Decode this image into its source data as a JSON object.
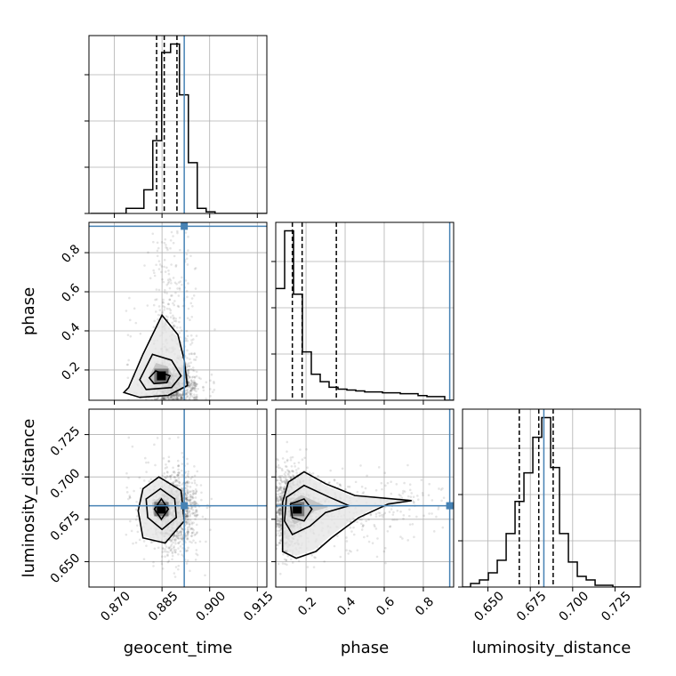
{
  "chart_data": {
    "type": "corner",
    "parameters": [
      "geocent_time",
      "phase",
      "luminosity_distance"
    ],
    "truths": {
      "geocent_time": 0.892,
      "phase": 0.935,
      "luminosity_distance": 0.683
    },
    "panels": {
      "geocent_time": {
        "range": [
          0.862,
          0.918
        ],
        "ticks": [
          "0.870",
          "0.885",
          "0.900",
          "0.915"
        ],
        "tick_values": [
          0.87,
          0.885,
          0.9,
          0.915
        ],
        "quantiles": [
          0.8833,
          0.8857,
          0.8897
        ],
        "hist_edges_start": 0.8625,
        "hist_bin_width": 0.0028,
        "hist_counts": [
          0,
          0,
          0,
          0,
          0.03,
          0.03,
          0.14,
          0.43,
          0.95,
          1.0,
          0.7,
          0.3,
          0.03,
          0.01,
          0,
          0,
          0,
          0,
          0,
          0
        ]
      },
      "phase": {
        "range": [
          0.045,
          0.955
        ],
        "ticks": [
          "0.2",
          "0.4",
          "0.6",
          "0.8"
        ],
        "tick_values": [
          0.2,
          0.4,
          0.6,
          0.8
        ],
        "quantiles": [
          0.13,
          0.18,
          0.355
        ],
        "hist_edges_start": 0.045,
        "hist_bin_width": 0.0455,
        "hist_counts": [
          0.6,
          0.91,
          0.57,
          0.26,
          0.14,
          0.1,
          0.07,
          0.06,
          0.055,
          0.05,
          0.045,
          0.045,
          0.04,
          0.04,
          0.035,
          0.035,
          0.025,
          0.02,
          0.02,
          0.0
        ]
      },
      "luminosity_distance": {
        "range": [
          0.635,
          0.74
        ],
        "ticks": [
          "0.650",
          "0.675",
          "0.700",
          "0.725"
        ],
        "tick_values": [
          0.65,
          0.675,
          0.7,
          0.725
        ],
        "quantiles": [
          0.6685,
          0.68,
          0.6885
        ],
        "hist_edges_start": 0.6345,
        "hist_bin_width": 0.00525,
        "hist_counts": [
          0,
          0.02,
          0.04,
          0.08,
          0.15,
          0.3,
          0.48,
          0.64,
          0.84,
          0.95,
          0.67,
          0.3,
          0.14,
          0.06,
          0.04,
          0.01,
          0.01,
          0,
          0,
          0
        ]
      }
    },
    "pairs": [
      {
        "x": "geocent_time",
        "y": "phase",
        "density_peak": [
          0.8848,
          0.17
        ],
        "contours": [
          [
            [
              0.883,
              0.195
            ],
            [
              0.8875,
              0.17
            ],
            [
              0.8865,
              0.135
            ],
            [
              0.8825,
              0.13
            ],
            [
              0.881,
              0.16
            ]
          ],
          [
            [
              0.882,
              0.28
            ],
            [
              0.888,
              0.25
            ],
            [
              0.891,
              0.17
            ],
            [
              0.888,
              0.11
            ],
            [
              0.88,
              0.1
            ],
            [
              0.878,
              0.15
            ]
          ],
          [
            [
              0.885,
              0.48
            ],
            [
              0.89,
              0.38
            ],
            [
              0.892,
              0.25
            ],
            [
              0.893,
              0.12
            ],
            [
              0.887,
              0.07
            ],
            [
              0.878,
              0.06
            ],
            [
              0.873,
              0.085
            ],
            [
              0.8745,
              0.11
            ],
            [
              0.879,
              0.28
            ],
            [
              0.882,
              0.38
            ]
          ]
        ]
      },
      {
        "x": "geocent_time",
        "y": "luminosity_distance",
        "density_peak": [
          0.8848,
          0.681
        ],
        "contours": [
          [
            [
              0.8848,
              0.687
            ],
            [
              0.887,
              0.681
            ],
            [
              0.8848,
              0.675
            ],
            [
              0.8826,
              0.681
            ]
          ],
          [
            [
              0.8845,
              0.693
            ],
            [
              0.889,
              0.687
            ],
            [
              0.8895,
              0.676
            ],
            [
              0.885,
              0.669
            ],
            [
              0.8805,
              0.676
            ],
            [
              0.88,
              0.687
            ]
          ],
          [
            [
              0.884,
              0.7
            ],
            [
              0.891,
              0.692
            ],
            [
              0.892,
              0.674
            ],
            [
              0.886,
              0.661
            ],
            [
              0.879,
              0.664
            ],
            [
              0.8775,
              0.68
            ],
            [
              0.879,
              0.693
            ]
          ]
        ]
      },
      {
        "x": "phase",
        "y": "luminosity_distance",
        "density_peak": [
          0.155,
          0.681
        ],
        "contours": [
          [
            [
              0.19,
              0.687
            ],
            [
              0.23,
              0.681
            ],
            [
              0.19,
              0.674
            ],
            [
              0.13,
              0.676
            ],
            [
              0.12,
              0.684
            ]
          ],
          [
            [
              0.19,
              0.695
            ],
            [
              0.32,
              0.688
            ],
            [
              0.42,
              0.683
            ],
            [
              0.3,
              0.679
            ],
            [
              0.22,
              0.671
            ],
            [
              0.13,
              0.666
            ],
            [
              0.09,
              0.674
            ],
            [
              0.1,
              0.688
            ]
          ],
          [
            [
              0.19,
              0.703
            ],
            [
              0.3,
              0.696
            ],
            [
              0.45,
              0.689
            ],
            [
              0.74,
              0.686
            ],
            [
              0.62,
              0.684
            ],
            [
              0.47,
              0.676
            ],
            [
              0.33,
              0.664
            ],
            [
              0.25,
              0.656
            ],
            [
              0.15,
              0.652
            ],
            [
              0.08,
              0.656
            ],
            [
              0.08,
              0.685
            ],
            [
              0.11,
              0.697
            ]
          ]
        ]
      }
    ]
  }
}
